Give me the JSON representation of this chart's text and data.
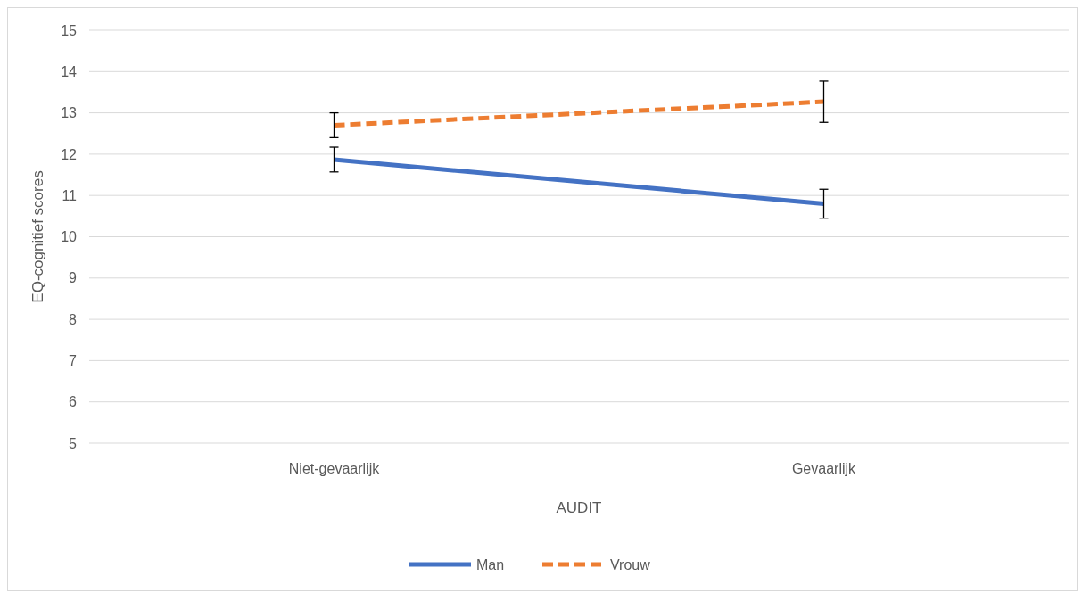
{
  "chart_data": {
    "type": "line",
    "xlabel": "AUDIT",
    "ylabel": "EQ-cognitief scores",
    "categories": [
      "Niet-gevaarlijk",
      "Gevaarlijk"
    ],
    "series": [
      {
        "name": "Man",
        "color": "#4472c4",
        "values": [
          11.87,
          10.8
        ],
        "errors": [
          0.3,
          0.35
        ],
        "line_style": "solid"
      },
      {
        "name": "Vrouw",
        "color": "#ed7d31",
        "values": [
          12.7,
          13.27
        ],
        "errors": [
          0.3,
          0.5
        ],
        "line_style": "dashed"
      }
    ],
    "ylim": [
      5,
      15
    ],
    "yticks": [
      5,
      6,
      7,
      8,
      9,
      10,
      11,
      12,
      13,
      14,
      15
    ],
    "grid": "y",
    "legend": "bottom",
    "marker": "none"
  }
}
